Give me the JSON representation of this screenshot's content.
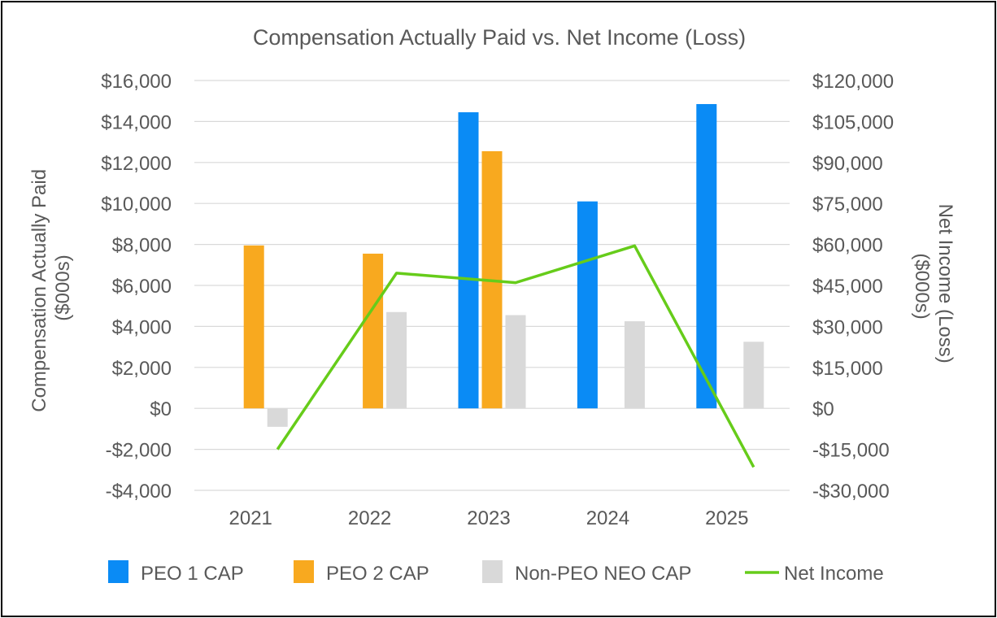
{
  "chart_data": {
    "type": "bar",
    "title": "Compensation Actually Paid vs. Net Income (Loss)",
    "categories": [
      "2021",
      "2022",
      "2023",
      "2024",
      "2025"
    ],
    "ylabel": [
      "Compensation Actually Paid",
      "($000s)"
    ],
    "y2label": [
      "Net Income (Loss)",
      "($000s)"
    ],
    "ylim": [
      -4000,
      16000
    ],
    "y2lim": [
      -30000,
      120000
    ],
    "yticks": [
      -4000,
      -2000,
      0,
      2000,
      4000,
      6000,
      8000,
      10000,
      12000,
      14000,
      16000
    ],
    "ytick_labels": [
      "-$4,000",
      "-$2,000",
      "$0",
      "$2,000",
      "$4,000",
      "$6,000",
      "$8,000",
      "$10,000",
      "$12,000",
      "$14,000",
      "$16,000"
    ],
    "y2ticks": [
      -30000,
      -15000,
      0,
      15000,
      30000,
      45000,
      60000,
      75000,
      90000,
      105000,
      120000
    ],
    "y2tick_labels": [
      "-$30,000",
      "-$15,000",
      "$0",
      "$15,000",
      "$30,000",
      "$45,000",
      "$60,000",
      "$75,000",
      "$90,000",
      "$105,000",
      "$120,000"
    ],
    "grid": true,
    "legend_position": "bottom",
    "series": [
      {
        "name": "PEO 1 CAP",
        "type": "bar",
        "axis": "left",
        "color": "#0A8BF5",
        "values": [
          null,
          null,
          14450,
          10100,
          14850
        ]
      },
      {
        "name": "PEO 2 CAP",
        "type": "bar",
        "axis": "left",
        "color": "#F8A91F",
        "values": [
          7950,
          7550,
          12550,
          null,
          null
        ]
      },
      {
        "name": "Non-PEO NEO CAP",
        "type": "bar",
        "axis": "left",
        "color": "#D9D9D9",
        "values": [
          -900,
          4700,
          4550,
          4250,
          3250
        ]
      },
      {
        "name": "Net Income",
        "type": "line",
        "axis": "right",
        "color": "#66CC1A",
        "values": [
          -15000,
          49500,
          46000,
          59500,
          -21500
        ]
      }
    ]
  }
}
